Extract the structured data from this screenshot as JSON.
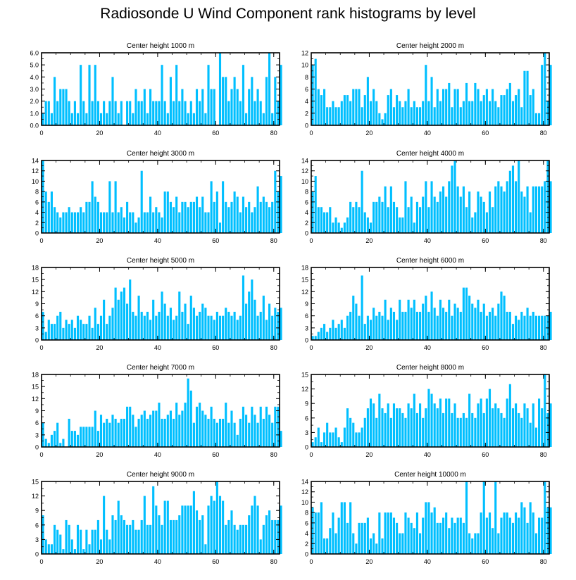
{
  "title": "Radiosonde U Wind Component rank histograms by level",
  "colors": {
    "bar": "#00BFFF",
    "axis": "#000000",
    "background": "#FFFFFF"
  },
  "chart_data": [
    {
      "type": "bar",
      "title": "Center height 1000 m",
      "xlim": [
        0,
        82
      ],
      "ylim": [
        0,
        6
      ],
      "xticks": [
        0,
        20,
        40,
        60,
        80
      ],
      "yticks": [
        0,
        1,
        2,
        3,
        4,
        5,
        6
      ],
      "ytick_labels": [
        "0.0",
        "1.0",
        "2.0",
        "3.0",
        "4.0",
        "5.0",
        "6.0"
      ],
      "values": [
        1,
        2,
        2,
        1,
        4,
        2,
        3,
        3,
        3,
        2,
        1,
        2,
        1,
        5,
        2,
        1,
        5,
        2,
        5,
        2,
        1,
        2,
        1,
        2,
        4,
        2,
        1,
        2,
        0,
        2,
        2,
        1,
        3,
        2,
        2,
        3,
        1,
        3,
        2,
        2,
        2,
        5,
        2,
        1,
        4,
        2,
        5,
        2,
        3,
        2,
        1,
        2,
        1,
        3,
        2,
        3,
        1,
        5,
        3,
        3,
        0,
        6,
        4,
        4,
        2,
        3,
        4,
        3,
        2,
        5,
        1,
        3,
        4,
        2,
        3,
        2,
        1,
        4,
        6,
        1,
        4,
        2,
        5
      ]
    },
    {
      "type": "bar",
      "title": "Center height 2000 m",
      "xlim": [
        0,
        82
      ],
      "ylim": [
        0,
        12
      ],
      "xticks": [
        0,
        20,
        40,
        60,
        80
      ],
      "yticks": [
        0,
        2,
        4,
        6,
        8,
        10,
        12
      ],
      "values": [
        10,
        11,
        6,
        5,
        6,
        3,
        3,
        4,
        3,
        3,
        4,
        5,
        5,
        4,
        6,
        6,
        6,
        3,
        5,
        8,
        4,
        6,
        4,
        2,
        1,
        2,
        5,
        6,
        3,
        5,
        4,
        3,
        4,
        6,
        3,
        4,
        3,
        3,
        4,
        10,
        4,
        8,
        3,
        6,
        4,
        6,
        6,
        7,
        3,
        6,
        6,
        3,
        4,
        7,
        4,
        4,
        7,
        6,
        4,
        5,
        6,
        4,
        6,
        4,
        3,
        5,
        5,
        6,
        7,
        4,
        5,
        6,
        3,
        9,
        9,
        5,
        6,
        2,
        2,
        10,
        12,
        4,
        10
      ]
    },
    {
      "type": "bar",
      "title": "Center height 3000 m",
      "xlim": [
        0,
        82
      ],
      "ylim": [
        0,
        14
      ],
      "xticks": [
        0,
        20,
        40,
        60,
        80
      ],
      "yticks": [
        0,
        2,
        4,
        6,
        8,
        10,
        12,
        14
      ],
      "values": [
        14,
        8,
        6,
        8,
        5,
        4,
        3,
        4,
        4,
        5,
        4,
        4,
        4,
        5,
        4,
        6,
        6,
        10,
        7,
        6,
        4,
        4,
        4,
        10,
        4,
        10,
        4,
        5,
        3,
        6,
        4,
        4,
        2,
        3,
        12,
        4,
        4,
        7,
        4,
        5,
        4,
        3,
        8,
        8,
        6,
        5,
        7,
        4,
        6,
        6,
        5,
        6,
        6,
        7,
        5,
        7,
        4,
        4,
        10,
        6,
        8,
        2,
        10,
        6,
        5,
        6,
        8,
        7,
        4,
        7,
        5,
        6,
        4,
        5,
        9,
        6,
        7,
        6,
        5,
        6,
        12,
        8,
        11
      ]
    },
    {
      "type": "bar",
      "title": "Center height 4000 m",
      "xlim": [
        0,
        82
      ],
      "ylim": [
        0,
        14
      ],
      "xticks": [
        0,
        20,
        40,
        60,
        80
      ],
      "yticks": [
        0,
        2,
        4,
        6,
        8,
        10,
        12,
        14
      ],
      "values": [
        8,
        11,
        5,
        5,
        4,
        4,
        5,
        2,
        3,
        2,
        1,
        2,
        3,
        6,
        5,
        6,
        5,
        12,
        4,
        3,
        2,
        6,
        6,
        7,
        6,
        9,
        5,
        9,
        6,
        5,
        3,
        3,
        10,
        5,
        7,
        2,
        6,
        5,
        7,
        10,
        5,
        10,
        7,
        6,
        8,
        9,
        7,
        10,
        13,
        14,
        9,
        7,
        9,
        5,
        8,
        3,
        4,
        8,
        7,
        6,
        4,
        8,
        5,
        9,
        10,
        9,
        8,
        10,
        12,
        13,
        10,
        14,
        8,
        7,
        9,
        4,
        9,
        9,
        9,
        9,
        10,
        14,
        10
      ]
    },
    {
      "type": "bar",
      "title": "Center height 5000 m",
      "xlim": [
        0,
        82
      ],
      "ylim": [
        0,
        18
      ],
      "xticks": [
        0,
        20,
        40,
        60,
        80
      ],
      "yticks": [
        0,
        3,
        6,
        9,
        12,
        15,
        18
      ],
      "values": [
        7,
        2,
        5,
        4,
        4,
        6,
        7,
        3,
        5,
        4,
        5,
        3,
        6,
        5,
        4,
        4,
        6,
        3,
        8,
        4,
        6,
        10,
        4,
        6,
        8,
        13,
        10,
        12,
        13,
        9,
        15,
        7,
        6,
        11,
        7,
        6,
        7,
        5,
        10,
        6,
        7,
        12,
        9,
        6,
        8,
        5,
        6,
        12,
        7,
        9,
        4,
        11,
        8,
        6,
        7,
        9,
        8,
        6,
        6,
        5,
        7,
        6,
        6,
        8,
        7,
        6,
        7,
        5,
        6,
        16,
        9,
        12,
        15,
        10,
        6,
        7,
        11,
        5,
        9,
        6,
        8,
        7,
        8
      ]
    },
    {
      "type": "bar",
      "title": "Center height 6000 m",
      "xlim": [
        0,
        82
      ],
      "ylim": [
        0,
        18
      ],
      "xticks": [
        0,
        20,
        40,
        60,
        80
      ],
      "yticks": [
        0,
        3,
        6,
        9,
        12,
        15,
        18
      ],
      "values": [
        1,
        1,
        2,
        3,
        4,
        2,
        3,
        5,
        3,
        4,
        5,
        3,
        6,
        7,
        11,
        9,
        6,
        16,
        4,
        6,
        5,
        8,
        6,
        7,
        6,
        10,
        5,
        8,
        7,
        5,
        10,
        7,
        7,
        10,
        8,
        10,
        7,
        7,
        9,
        11,
        7,
        12,
        8,
        6,
        10,
        8,
        7,
        10,
        6,
        9,
        8,
        7,
        13,
        13,
        11,
        9,
        8,
        10,
        7,
        9,
        6,
        7,
        8,
        6,
        9,
        12,
        11,
        7,
        7,
        4,
        6,
        5,
        7,
        6,
        8,
        6,
        7,
        6,
        6,
        6,
        6,
        6,
        7
      ]
    },
    {
      "type": "bar",
      "title": "Center height 7000 m",
      "xlim": [
        0,
        82
      ],
      "ylim": [
        0,
        18
      ],
      "xticks": [
        0,
        20,
        40,
        60,
        80
      ],
      "yticks": [
        0,
        3,
        6,
        9,
        12,
        15,
        18
      ],
      "values": [
        6,
        2,
        1,
        3,
        4,
        6,
        1,
        2,
        0,
        7,
        4,
        4,
        3,
        5,
        5,
        5,
        5,
        5,
        9,
        4,
        8,
        6,
        7,
        6,
        8,
        7,
        6,
        7,
        7,
        10,
        10,
        8,
        5,
        7,
        8,
        9,
        7,
        8,
        9,
        9,
        11,
        7,
        7,
        8,
        9,
        7,
        11,
        8,
        9,
        11,
        17,
        14,
        6,
        10,
        11,
        9,
        8,
        7,
        10,
        7,
        6,
        7,
        7,
        11,
        6,
        9,
        6,
        3,
        7,
        10,
        8,
        6,
        10,
        8,
        6,
        10,
        7,
        10,
        8,
        6,
        10,
        10,
        4
      ]
    },
    {
      "type": "bar",
      "title": "Center height 8000 m",
      "xlim": [
        0,
        82
      ],
      "ylim": [
        0,
        15
      ],
      "xticks": [
        0,
        20,
        40,
        60,
        80
      ],
      "yticks": [
        0,
        3,
        6,
        9,
        12,
        15
      ],
      "values": [
        1,
        2,
        4,
        1,
        3,
        5,
        3,
        3,
        4,
        2,
        1,
        4,
        8,
        6,
        5,
        3,
        3,
        4,
        6,
        8,
        10,
        9,
        6,
        11,
        8,
        7,
        9,
        6,
        9,
        8,
        8,
        7,
        6,
        9,
        8,
        11,
        7,
        9,
        6,
        8,
        12,
        11,
        9,
        8,
        10,
        7,
        10,
        10,
        7,
        9,
        6,
        6,
        7,
        6,
        11,
        7,
        6,
        9,
        10,
        7,
        10,
        12,
        8,
        9,
        8,
        7,
        6,
        10,
        13,
        8,
        9,
        7,
        6,
        9,
        8,
        5,
        9,
        4,
        10,
        8,
        15,
        7,
        9
      ]
    },
    {
      "type": "bar",
      "title": "Center height 9000 m",
      "xlim": [
        0,
        82
      ],
      "ylim": [
        0,
        15
      ],
      "xticks": [
        0,
        20,
        40,
        60,
        80
      ],
      "yticks": [
        0,
        3,
        6,
        9,
        12,
        15
      ],
      "values": [
        8,
        3,
        2,
        2,
        6,
        5,
        4,
        1,
        7,
        6,
        3,
        1,
        6,
        5,
        1,
        5,
        2,
        5,
        5,
        7,
        3,
        12,
        5,
        3,
        8,
        7,
        11,
        8,
        7,
        6,
        6,
        7,
        5,
        5,
        7,
        12,
        6,
        6,
        14,
        10,
        8,
        6,
        11,
        11,
        7,
        7,
        7,
        8,
        10,
        10,
        10,
        10,
        13,
        9,
        7,
        8,
        2,
        10,
        12,
        11,
        15,
        12,
        11,
        6,
        7,
        9,
        6,
        5,
        6,
        6,
        6,
        8,
        10,
        12,
        10,
        3,
        6,
        8,
        9,
        7,
        7,
        7,
        10
      ]
    },
    {
      "type": "bar",
      "title": "Center height 10000 m",
      "xlim": [
        0,
        82
      ],
      "ylim": [
        0,
        14
      ],
      "xticks": [
        0,
        20,
        40,
        60,
        80
      ],
      "yticks": [
        0,
        2,
        4,
        6,
        8,
        10,
        12,
        14
      ],
      "values": [
        9,
        8,
        8,
        10,
        3,
        3,
        5,
        8,
        4,
        7,
        10,
        10,
        6,
        10,
        4,
        2,
        6,
        6,
        6,
        7,
        3,
        4,
        2,
        8,
        3,
        8,
        8,
        8,
        7,
        6,
        4,
        4,
        8,
        7,
        6,
        5,
        8,
        4,
        7,
        10,
        10,
        8,
        9,
        6,
        6,
        7,
        8,
        5,
        7,
        6,
        7,
        7,
        6,
        14,
        4,
        3,
        4,
        4,
        8,
        14,
        7,
        8,
        5,
        14,
        4,
        7,
        8,
        8,
        7,
        6,
        8,
        7,
        10,
        9,
        6,
        10,
        8,
        4,
        7,
        7,
        14,
        9,
        9
      ]
    }
  ]
}
